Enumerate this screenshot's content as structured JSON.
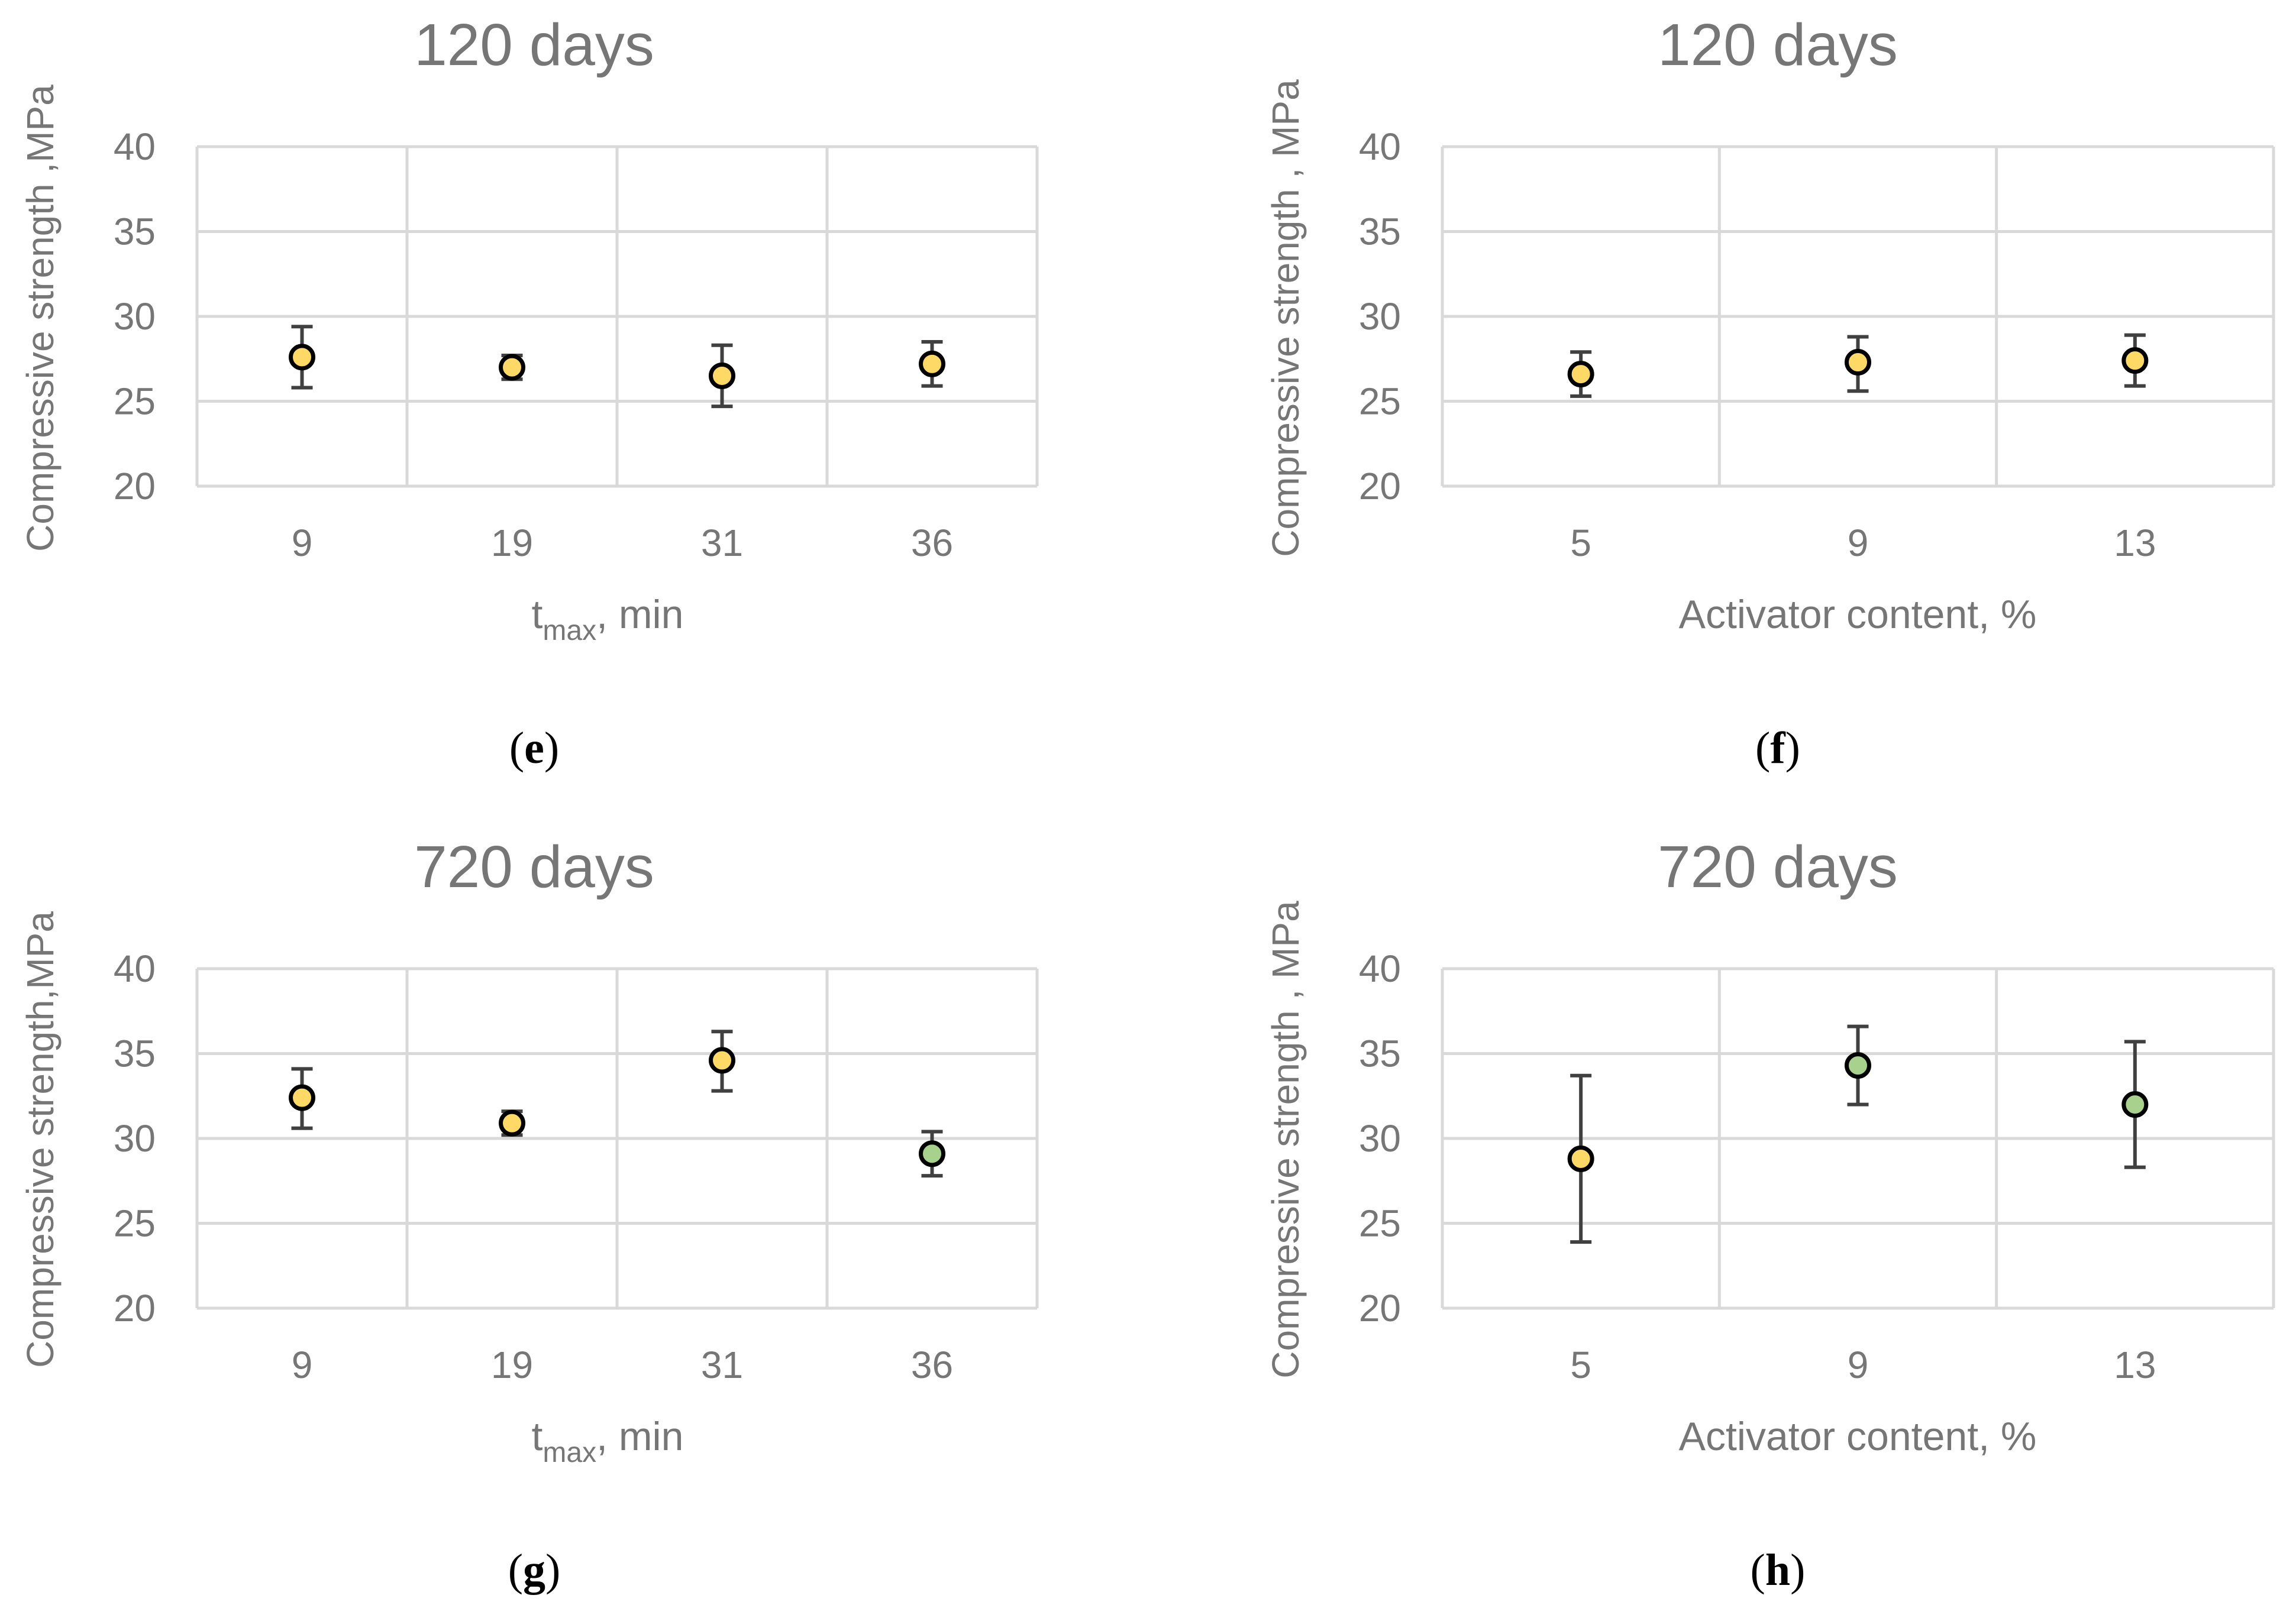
{
  "colors": {
    "yellow_marker": "#ffd966",
    "green_marker": "#a9d18e",
    "grid": "#d9d9d9",
    "text": "#767676",
    "error_bar": "#404040"
  },
  "chart_data": [
    {
      "panel": "(e)",
      "panel_letter": "e",
      "type": "scatter",
      "title": "120 days",
      "ylabel": "Compressive strength ,MPa",
      "xlabel_main": "t",
      "xlabel_sub": "max",
      "xlabel_rest": ", min",
      "categories": [
        "9",
        "19",
        "31",
        "36"
      ],
      "values": [
        27.6,
        27.0,
        26.5,
        27.2
      ],
      "err_low": [
        25.8,
        26.3,
        24.7,
        25.9
      ],
      "err_high": [
        29.4,
        27.7,
        28.3,
        28.5
      ],
      "marker_colors": [
        "#ffd966",
        "#ffd966",
        "#ffd966",
        "#ffd966"
      ],
      "ylim": [
        20,
        40
      ],
      "yticks": [
        "20",
        "25",
        "30",
        "35",
        "40"
      ]
    },
    {
      "panel": "(f)",
      "panel_letter": "f",
      "type": "scatter",
      "title": "120 days",
      "ylabel": "Compressive strength , MPa",
      "xlabel_main": "Activator content, %",
      "xlabel_sub": "",
      "xlabel_rest": "",
      "categories": [
        "5",
        "9",
        "13"
      ],
      "values": [
        26.6,
        27.3,
        27.4
      ],
      "err_low": [
        25.3,
        25.6,
        25.9
      ],
      "err_high": [
        27.9,
        28.8,
        28.9
      ],
      "marker_colors": [
        "#ffd966",
        "#ffd966",
        "#ffd966"
      ],
      "ylim": [
        20,
        40
      ],
      "yticks": [
        "20",
        "25",
        "30",
        "35",
        "40"
      ]
    },
    {
      "panel": "(g)",
      "panel_letter": "g",
      "type": "scatter",
      "title": "720 days",
      "ylabel": "Compressive strength,MPa",
      "xlabel_main": "t",
      "xlabel_sub": "max",
      "xlabel_rest": ", min",
      "categories": [
        "9",
        "19",
        "31",
        "36"
      ],
      "values": [
        32.4,
        30.9,
        34.6,
        29.1
      ],
      "err_low": [
        30.6,
        30.2,
        32.8,
        27.8
      ],
      "err_high": [
        34.1,
        31.6,
        36.3,
        30.4
      ],
      "marker_colors": [
        "#ffd966",
        "#ffd966",
        "#ffd966",
        "#a9d18e"
      ],
      "ylim": [
        20,
        40
      ],
      "yticks": [
        "20",
        "25",
        "30",
        "35",
        "40"
      ]
    },
    {
      "panel": "(h)",
      "panel_letter": "h",
      "type": "scatter",
      "title": "720 days",
      "ylabel": "Compressive strength , MPa",
      "xlabel_main": "Activator content, %",
      "xlabel_sub": "",
      "xlabel_rest": "",
      "categories": [
        "5",
        "9",
        "13"
      ],
      "values": [
        28.8,
        34.3,
        32.0
      ],
      "err_low": [
        23.9,
        32.0,
        28.3
      ],
      "err_high": [
        33.7,
        36.6,
        35.7
      ],
      "marker_colors": [
        "#ffd966",
        "#a9d18e",
        "#a9d18e"
      ],
      "ylim": [
        20,
        40
      ],
      "yticks": [
        "20",
        "25",
        "30",
        "35",
        "40"
      ]
    }
  ]
}
